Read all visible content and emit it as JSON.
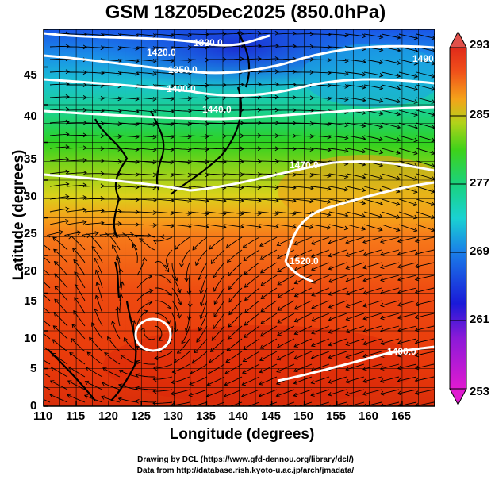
{
  "title": "GSM 18Z05Dec2025 (850.0hPa)",
  "xlabel": "Longitude (degrees)",
  "ylabel": "Latitude  (degrees)",
  "x_ticks": [
    "110",
    "115",
    "120",
    "125",
    "130",
    "135",
    "140",
    "145",
    "150",
    "155",
    "160",
    "165"
  ],
  "y_ticks": [
    "0",
    "5",
    "10",
    "15",
    "20",
    "25",
    "30",
    "35",
    "40",
    "45"
  ],
  "colorbar": {
    "labels": [
      "293",
      "285",
      "277",
      "269",
      "261",
      "253"
    ],
    "min": 253,
    "max": 293
  },
  "contours": [
    {
      "label": "1320.0"
    },
    {
      "label": "1350.0"
    },
    {
      "label": "1400.0"
    },
    {
      "label": "1440.0"
    },
    {
      "label": "1470.0"
    },
    {
      "label": "1520.0"
    },
    {
      "label": "1490.0"
    },
    {
      "label": "1420.0"
    },
    {
      "label": "1400.0"
    }
  ],
  "credits": {
    "line1": "Drawing by DCL (https://www.gfd-dennou.org/library/dcl/)",
    "line2": "Data from http://database.rish.kyoto-u.ac.jp/arch/jmadata/"
  },
  "chart_data": {
    "type": "heatmap",
    "title": "GSM 18Z05Dec2025 (850.0hPa)",
    "xlabel": "Longitude (degrees)",
    "ylabel": "Latitude  (degrees)",
    "xlim": [
      110,
      170
    ],
    "ylim": [
      0,
      50
    ],
    "color_scale": {
      "min": 253,
      "max": 293,
      "ticks": [
        253,
        261,
        269,
        277,
        285,
        293
      ]
    },
    "grid": true
  }
}
